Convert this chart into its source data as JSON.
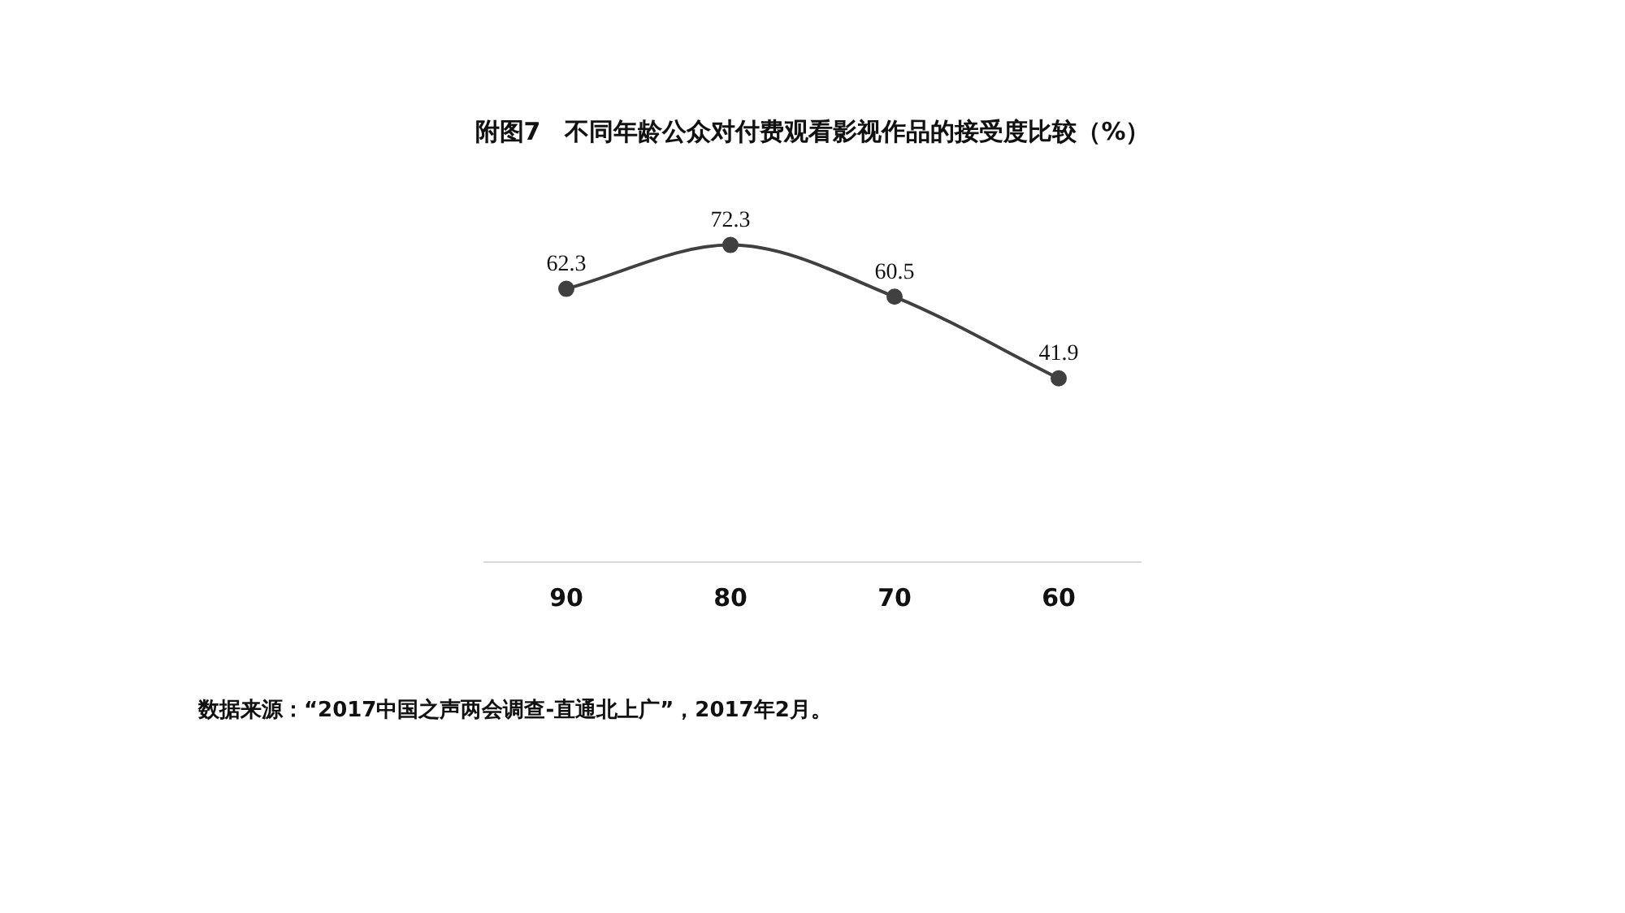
{
  "chart_data": {
    "type": "line",
    "title": "附图7　不同年龄公众对付费观看影视作品的接受度比较（%）",
    "categories": [
      "90",
      "80",
      "70",
      "60"
    ],
    "series": [
      {
        "color": "#404040",
        "values": [
          62.3,
          72.3,
          60.5,
          41.9
        ]
      }
    ],
    "data_labels": true,
    "marker": "circle",
    "grid": false,
    "legend": false,
    "tick_labels": "x",
    "annotations": [
      "数据来源：“2017中国之声两会调查-直通北上广”，2017年2月。"
    ]
  }
}
